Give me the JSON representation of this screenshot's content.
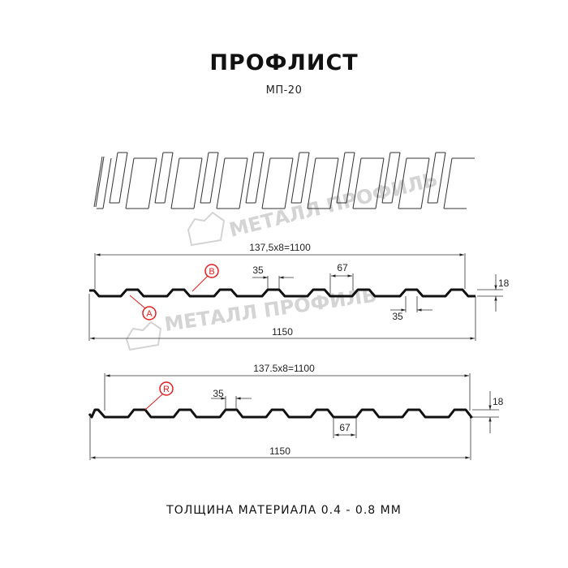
{
  "header": {
    "title": "ПРОФЛИСТ",
    "subtitle": "МП-20"
  },
  "watermark": {
    "text": "МЕТАЛЛ ПРОФИЛЬ"
  },
  "profile_top": {
    "pitch_label": "137,5х8=1100",
    "total_width": "1150",
    "rib_top": "35",
    "rib_base": "67",
    "rib_top_bottom": "35",
    "height": "18",
    "markers": [
      "A",
      "B"
    ]
  },
  "profile_bottom": {
    "pitch_label": "137.5x8=1100",
    "total_width": "1150",
    "rib_top": "35",
    "rib_base": "67",
    "height": "18",
    "markers": [
      "R"
    ]
  },
  "footer": {
    "thickness": "ТОЛЩИНА МАТЕРИАЛА 0.4 - 0.8 ММ"
  },
  "colors": {
    "marker": "#e41e1e",
    "line": "#111111",
    "watermark": "#d4d4d4"
  }
}
